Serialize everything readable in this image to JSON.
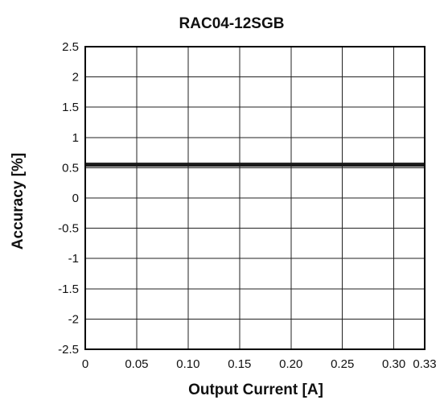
{
  "chart_data": {
    "type": "line",
    "title": "RAC04-12SGB",
    "xlabel": "Output Current [A]",
    "ylabel": "Accuracy [%]",
    "xlim": [
      0,
      0.33
    ],
    "ylim": [
      -2.5,
      2.5
    ],
    "grid": true,
    "x_ticks": [
      0,
      0.05,
      0.1,
      0.15,
      0.2,
      0.25,
      0.3,
      0.33
    ],
    "x_tick_labels": [
      "0",
      "0.05",
      "0.10",
      "0.15",
      "0.20",
      "0.25",
      "0.30",
      "0.33"
    ],
    "y_ticks": [
      2.5,
      2,
      1.5,
      1,
      0.5,
      0,
      -0.5,
      -1,
      -1.5,
      -2,
      -2.5
    ],
    "y_tick_labels": [
      "2.5",
      "2",
      "1.5",
      "1",
      "0.5",
      "0",
      "-0.5",
      "-1",
      "-1.5",
      "-2",
      "-2.5"
    ],
    "series": [
      {
        "x": [
          0,
          0.33
        ],
        "y": [
          0.55,
          0.55
        ],
        "color": "#1a1a1a"
      }
    ]
  }
}
